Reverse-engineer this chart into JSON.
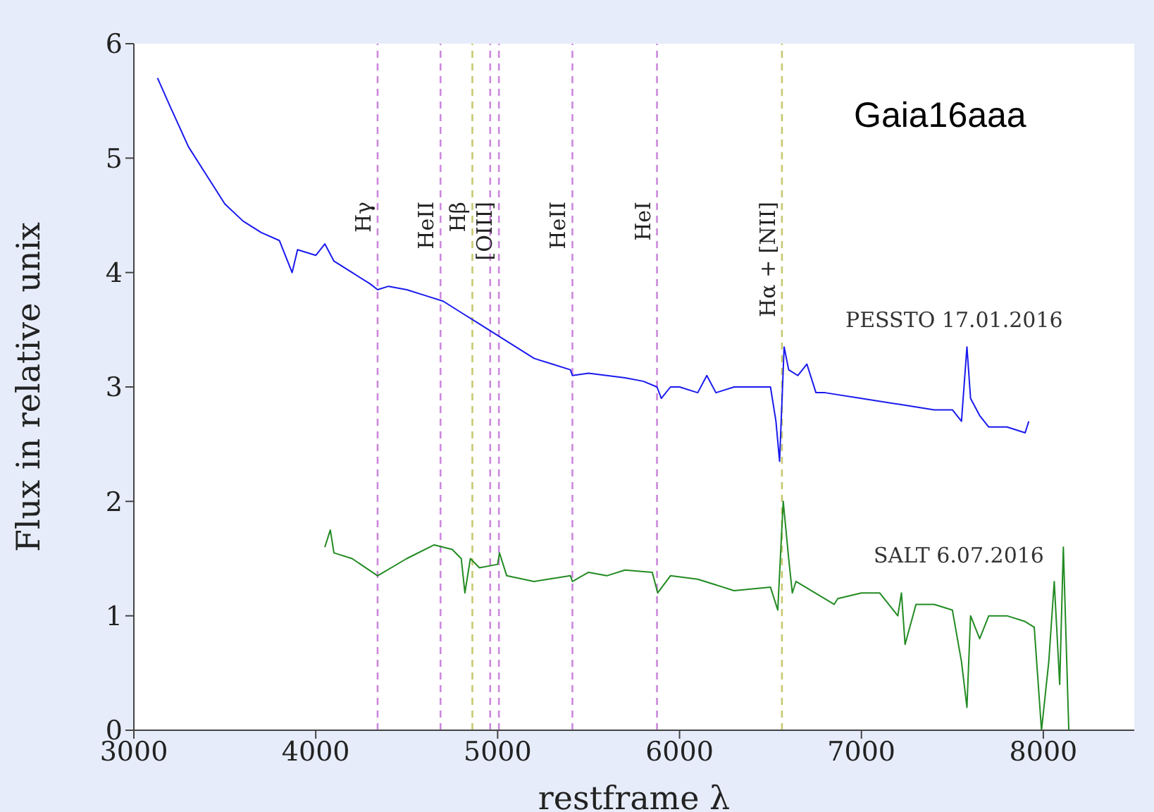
{
  "chart_data": {
    "type": "line",
    "title": "Gaia16aaa",
    "xlabel": "restframe λ",
    "ylabel": "Flux in relative unix",
    "xlim": [
      3000,
      8500
    ],
    "xticks": [
      3000,
      4000,
      5000,
      6000,
      7000,
      8000
    ],
    "ylim": [
      0,
      6
    ],
    "yticks": [
      0,
      1,
      2,
      3,
      4,
      5,
      6
    ],
    "series": [
      {
        "name": "PESSTO 17.01.2016",
        "color": "#1a1aee",
        "x": [
          3130,
          3200,
          3300,
          3400,
          3500,
          3600,
          3700,
          3800,
          3870,
          3900,
          4000,
          4050,
          4100,
          4200,
          4300,
          4340,
          4400,
          4500,
          4600,
          4700,
          4800,
          4900,
          5000,
          5100,
          5200,
          5300,
          5400,
          5411,
          5500,
          5600,
          5700,
          5800,
          5876,
          5900,
          5950,
          6000,
          6100,
          6150,
          6200,
          6300,
          6400,
          6500,
          6530,
          6550,
          6575,
          6600,
          6650,
          6700,
          6750,
          6800,
          7000,
          7200,
          7400,
          7500,
          7550,
          7580,
          7600,
          7650,
          7700,
          7800,
          7900,
          7920
        ],
        "values": [
          5.7,
          5.45,
          5.1,
          4.85,
          4.6,
          4.45,
          4.35,
          4.28,
          4.0,
          4.2,
          4.15,
          4.25,
          4.1,
          4.0,
          3.9,
          3.85,
          3.88,
          3.85,
          3.8,
          3.75,
          3.65,
          3.55,
          3.45,
          3.35,
          3.25,
          3.2,
          3.15,
          3.1,
          3.12,
          3.1,
          3.08,
          3.05,
          3.0,
          2.9,
          3.0,
          3.0,
          2.95,
          3.1,
          2.95,
          3.0,
          3.0,
          3.0,
          2.7,
          2.35,
          3.35,
          3.15,
          3.1,
          3.2,
          2.95,
          2.95,
          2.9,
          2.85,
          2.8,
          2.8,
          2.7,
          3.35,
          2.9,
          2.75,
          2.65,
          2.65,
          2.6,
          2.7
        ]
      },
      {
        "name": "SALT 6.07.2016",
        "color": "#228b22",
        "x": [
          4050,
          4080,
          4100,
          4200,
          4340,
          4500,
          4650,
          4750,
          4800,
          4820,
          4850,
          4900,
          5000,
          5010,
          5050,
          5200,
          5400,
          5411,
          5500,
          5600,
          5700,
          5850,
          5880,
          5950,
          6100,
          6300,
          6500,
          6540,
          6570,
          6600,
          6620,
          6640,
          6850,
          6870,
          7000,
          7100,
          7200,
          7220,
          7240,
          7300,
          7400,
          7500,
          7550,
          7580,
          7600,
          7650,
          7700,
          7800,
          7900,
          7950,
          7990,
          8030,
          8060,
          8090,
          8110,
          8140
        ],
        "values": [
          1.6,
          1.75,
          1.55,
          1.5,
          1.35,
          1.5,
          1.62,
          1.58,
          1.5,
          1.2,
          1.5,
          1.42,
          1.45,
          1.55,
          1.35,
          1.3,
          1.35,
          1.3,
          1.38,
          1.35,
          1.4,
          1.38,
          1.2,
          1.35,
          1.32,
          1.22,
          1.25,
          1.05,
          2.0,
          1.5,
          1.2,
          1.3,
          1.1,
          1.15,
          1.2,
          1.2,
          1.0,
          1.2,
          0.75,
          1.1,
          1.1,
          1.05,
          0.6,
          0.2,
          1.0,
          0.8,
          1.0,
          1.0,
          0.95,
          0.9,
          0.0,
          0.6,
          1.3,
          0.4,
          1.6,
          0.0
        ]
      }
    ],
    "ref_lines": [
      {
        "axis": "x",
        "value": 4340,
        "label": "Hγ",
        "color": "#cc88dd",
        "line_style": "dashed"
      },
      {
        "axis": "x",
        "value": 4686,
        "label": "HeII",
        "color": "#cc88dd",
        "line_style": "dashed"
      },
      {
        "axis": "x",
        "value": 4861,
        "label": "Hβ",
        "color": "#c8c870",
        "line_style": "dashed"
      },
      {
        "axis": "x",
        "value": 4959,
        "label": null,
        "color": "#cc88dd",
        "line_style": "dashed"
      },
      {
        "axis": "x",
        "value": 5007,
        "label": "[OIII]",
        "color": "#cc88dd",
        "line_style": "dashed"
      },
      {
        "axis": "x",
        "value": 5411,
        "label": "HeII",
        "color": "#cc88dd",
        "line_style": "dashed"
      },
      {
        "axis": "x",
        "value": 5876,
        "label": "HeI",
        "color": "#cc88dd",
        "line_style": "dashed"
      },
      {
        "axis": "x",
        "value": 6563,
        "label": "Hα + [NII]",
        "color": "#c8c870",
        "line_style": "dashed"
      }
    ]
  }
}
